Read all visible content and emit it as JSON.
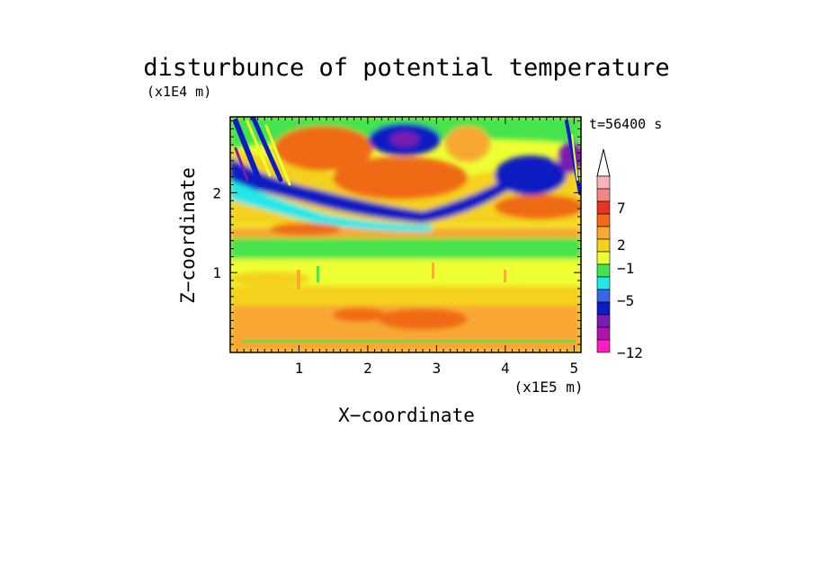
{
  "chart_data": {
    "type": "heatmap",
    "title": "disturbunce of potential temperature",
    "y_unit": "(x1E4 m)",
    "x_unit": "(x1E5 m)",
    "time_label": "t=56400 s",
    "xlabel": "X−coordinate",
    "ylabel": "Z−coordinate",
    "xlim": [
      0,
      5.1
    ],
    "ylim": [
      0,
      2.95
    ],
    "x_ticks": [
      "1",
      "2",
      "3",
      "4",
      "5"
    ],
    "y_ticks": [
      "1",
      "2"
    ],
    "colorbar": {
      "levels": [
        "7",
        "2",
        "−1",
        "−5",
        "−12"
      ],
      "colors": [
        "#f7b6b6",
        "#f48686",
        "#e83323",
        "#f06a19",
        "#f8a833",
        "#f4d11f",
        "#eeff33",
        "#44e34d",
        "#22e8e8",
        "#3a67e6",
        "#0b1cc2",
        "#7a1cb0",
        "#b014b0",
        "#ff1cc6"
      ]
    }
  }
}
